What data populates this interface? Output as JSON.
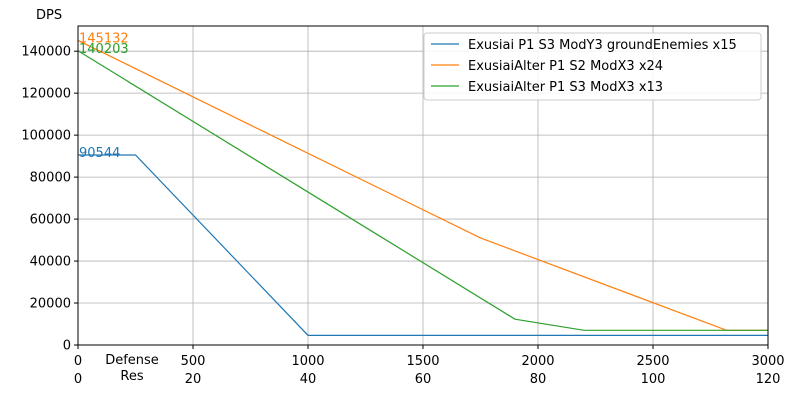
{
  "chart_data": {
    "type": "line",
    "title": "",
    "ylabel": "DPS",
    "xlabel_lines": [
      "Defense",
      "Res"
    ],
    "xlim": [
      0,
      3000
    ],
    "ylim": [
      0,
      152000
    ],
    "grid": true,
    "legend_position": "top-right",
    "x_ticks": [
      {
        "value": 0,
        "label": "0",
        "res_label": "0"
      },
      {
        "value": 500,
        "label": "500",
        "res_label": "20"
      },
      {
        "value": 1000,
        "label": "1000",
        "res_label": "40"
      },
      {
        "value": 1500,
        "label": "1500",
        "res_label": "60"
      },
      {
        "value": 2000,
        "label": "2000",
        "res_label": "80"
      },
      {
        "value": 2500,
        "label": "2500",
        "res_label": "100"
      },
      {
        "value": 3000,
        "label": "3000",
        "res_label": "120"
      }
    ],
    "y_ticks": [
      {
        "value": 0,
        "label": "0"
      },
      {
        "value": 20000,
        "label": "20000"
      },
      {
        "value": 40000,
        "label": "40000"
      },
      {
        "value": 60000,
        "label": "60000"
      },
      {
        "value": 80000,
        "label": "80000"
      },
      {
        "value": 100000,
        "label": "100000"
      },
      {
        "value": 120000,
        "label": "120000"
      },
      {
        "value": 140000,
        "label": "140000"
      }
    ],
    "series": [
      {
        "name": "Exusiai P1 S3 ModY3 groundEnemies x15",
        "color": "#1f77b4",
        "start_label": "90544",
        "points": [
          [
            0,
            90544
          ],
          [
            250,
            90544
          ],
          [
            1000,
            4600
          ],
          [
            3000,
            4600
          ]
        ]
      },
      {
        "name": "ExusiaiAlter P1 S2 ModX3 x24",
        "color": "#ff7f0e",
        "start_label": "145132",
        "points": [
          [
            0,
            145132
          ],
          [
            1750,
            51000
          ],
          [
            2820,
            7000
          ],
          [
            3000,
            7000
          ]
        ]
      },
      {
        "name": "ExusiaiAlter P1 S3 ModX3 x13",
        "color": "#2ca02c",
        "start_label": "140203",
        "points": [
          [
            0,
            140203
          ],
          [
            1900,
            12300
          ],
          [
            2200,
            7000
          ],
          [
            3000,
            7000
          ]
        ]
      }
    ]
  }
}
